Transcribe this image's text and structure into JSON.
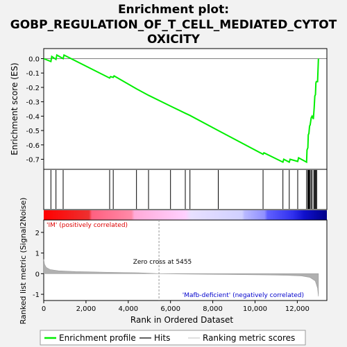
{
  "title_lines": [
    "Enrichment plot:",
    "GOBP_REGULATION_OF_T_CELL_MEDIATED_CYTOT",
    "OXICITY"
  ],
  "chart_data": {
    "type": "line",
    "es_plot": {
      "ylabel": "Enrichment score (ES)",
      "ylim": [
        -0.77,
        0.07
      ],
      "yticks": [
        0.0,
        -0.1,
        -0.2,
        -0.3,
        -0.4,
        -0.5,
        -0.6,
        -0.7
      ],
      "ytick_labels": [
        "0.0",
        "-0.1",
        "-0.2",
        "-0.3",
        "-0.4",
        "-0.5",
        "-0.6",
        "-0.7"
      ],
      "points": [
        [
          0,
          0.0
        ],
        [
          340,
          -0.02
        ],
        [
          380,
          0.015
        ],
        [
          580,
          -0.005
        ],
        [
          620,
          0.025
        ],
        [
          920,
          0.0
        ],
        [
          960,
          0.025
        ],
        [
          3120,
          -0.135
        ],
        [
          3160,
          -0.125
        ],
        [
          3290,
          -0.13
        ],
        [
          3330,
          -0.12
        ],
        [
          4390,
          -0.21
        ],
        [
          4960,
          -0.255
        ],
        [
          6000,
          -0.33
        ],
        [
          6700,
          -0.38
        ],
        [
          6920,
          -0.395
        ],
        [
          8260,
          -0.5
        ],
        [
          10380,
          -0.665
        ],
        [
          10420,
          -0.655
        ],
        [
          11320,
          -0.72
        ],
        [
          11360,
          -0.7
        ],
        [
          11620,
          -0.72
        ],
        [
          11660,
          -0.7
        ],
        [
          12020,
          -0.715
        ],
        [
          12060,
          -0.69
        ],
        [
          12440,
          -0.72
        ],
        [
          12460,
          -0.635
        ],
        [
          12500,
          -0.62
        ],
        [
          12520,
          -0.53
        ],
        [
          12550,
          -0.52
        ],
        [
          12580,
          -0.47
        ],
        [
          12610,
          -0.46
        ],
        [
          12660,
          -0.41
        ],
        [
          12700,
          -0.4
        ],
        [
          12760,
          -0.42
        ],
        [
          12800,
          -0.34
        ],
        [
          12830,
          -0.26
        ],
        [
          12860,
          -0.25
        ],
        [
          12880,
          -0.17
        ],
        [
          12900,
          -0.16
        ],
        [
          12960,
          -0.16
        ],
        [
          13000,
          0.0
        ]
      ]
    },
    "hits": [
      340,
      580,
      920,
      3120,
      3290,
      4390,
      4960,
      6000,
      6700,
      6920,
      8260,
      10380,
      11320,
      11620,
      12020,
      12440,
      12500,
      12530,
      12560,
      12600,
      12650,
      12700,
      12780,
      12820,
      12850,
      12880,
      12920
    ],
    "rank_metric": {
      "ylabel": "Ranked list metric (Signal2Noise)",
      "ylim": [
        -1.3,
        2.6
      ],
      "yticks": [
        2,
        1,
        0,
        -1
      ],
      "ytick_labels": [
        "2",
        "1",
        "0",
        "-1"
      ],
      "points": [
        [
          0,
          0.7
        ],
        [
          40,
          0.45
        ],
        [
          120,
          0.3
        ],
        [
          300,
          0.2
        ],
        [
          700,
          0.14
        ],
        [
          1500,
          0.1
        ],
        [
          3000,
          0.07
        ],
        [
          4500,
          0.045
        ],
        [
          5455,
          0.0
        ],
        [
          7000,
          -0.02
        ],
        [
          9000,
          -0.04
        ],
        [
          10500,
          -0.06
        ],
        [
          11500,
          -0.08
        ],
        [
          12200,
          -0.11
        ],
        [
          12600,
          -0.18
        ],
        [
          12850,
          -0.35
        ],
        [
          12960,
          -0.7
        ],
        [
          13000,
          -1.1
        ]
      ],
      "zero_cross_label": "Zero cross at 5455",
      "zero_cross_x": 5455,
      "pos_label": "'IM' (positively correlated)",
      "neg_label": "'Mafb-deficient' (negatively correlated)"
    },
    "x": {
      "xlabel": "Rank in Ordered Dataset",
      "xlim": [
        0,
        13400
      ],
      "xticks": [
        0,
        2000,
        4000,
        6000,
        8000,
        10000,
        12000
      ],
      "xtick_labels": [
        "0",
        "2,000",
        "4,000",
        "6,000",
        "8,000",
        "10,000",
        "12,000"
      ],
      "dataset_size": 13000
    },
    "colors": {
      "es_line": "#00ee00",
      "hits": "#000000",
      "metric_fill": "#b0b0b0",
      "pos_label": "#dd0000",
      "neg_label": "#0000cc"
    },
    "legend": {
      "placement": "bottom",
      "entries": [
        "Enrichment profile",
        "Hits",
        "Ranking metric scores"
      ]
    }
  }
}
